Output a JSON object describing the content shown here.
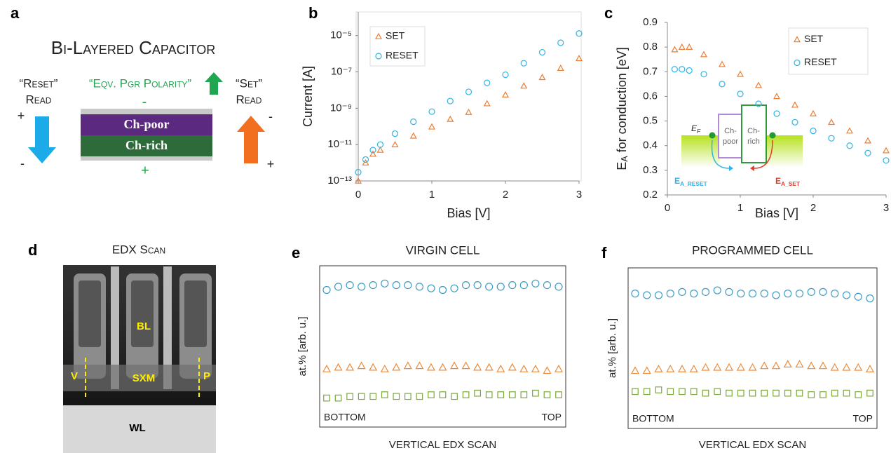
{
  "panel_labels": [
    "a",
    "b",
    "c",
    "d",
    "e",
    "f"
  ],
  "panel_a": {
    "title": "Bi-Layered Capacitor",
    "reset": "“Reset”",
    "reset_read": "Read",
    "polarity": "“Eqv. Pgr Polarity”",
    "set": "“Set”",
    "set_read": "Read",
    "top_sign": "-",
    "bottom_sign": "+",
    "left_top": "+",
    "left_bottom": "-",
    "right_top": "-",
    "right_bottom": "+",
    "layer_top": "Ch-poor",
    "layer_bottom": "Ch-rich"
  },
  "panel_d": {
    "title": "EDX Scan",
    "bl": "BL",
    "sxm": "SXM",
    "v": "V",
    "p": "P",
    "wl": "WL"
  },
  "chart_data": [
    {
      "type": "scatter",
      "xlabel": "Bias [V]",
      "ylabel": "Current [A]",
      "log_y": true,
      "legend": "upper left",
      "xlim": [
        0,
        3
      ],
      "xticks": [
        0,
        1,
        2,
        3
      ],
      "ylim": [
        1e-13,
        0.0002
      ],
      "yticks": [
        {
          "value": 1e-13,
          "label": "10⁻¹³"
        },
        {
          "value": 1e-11,
          "label": "10⁻¹¹"
        },
        {
          "value": 1e-09,
          "label": "10⁻⁹"
        },
        {
          "value": 1e-07,
          "label": "10⁻⁷"
        },
        {
          "value": 1e-05,
          "label": "10⁻⁵"
        }
      ],
      "series": [
        {
          "name": "SET",
          "color": "#ed7d31",
          "marker": "triangle",
          "x": [
            0,
            0.1,
            0.2,
            0.3,
            0.5,
            0.75,
            1,
            1.25,
            1.5,
            1.75,
            2,
            2.25,
            2.5,
            2.75,
            3
          ],
          "values": [
            1e-13,
            1e-12,
            3e-12,
            5e-12,
            1e-11,
            3e-11,
            9.5e-11,
            2.5e-10,
            6e-10,
            1.8e-09,
            5.5e-09,
            1.7e-08,
            5e-08,
            1.6e-07,
            5.5e-07
          ]
        },
        {
          "name": "RESET",
          "color": "#2eb4e6",
          "marker": "circle",
          "x": [
            0,
            0.1,
            0.2,
            0.3,
            0.5,
            0.75,
            1,
            1.25,
            1.5,
            1.75,
            2,
            2.25,
            2.5,
            2.75,
            3
          ],
          "values": [
            3e-13,
            1.5e-12,
            5e-12,
            1e-11,
            4e-11,
            1.8e-10,
            6.5e-10,
            2.5e-09,
            8e-09,
            2.5e-08,
            7e-08,
            3e-07,
            1.2e-06,
            4e-06,
            1.3e-05
          ]
        }
      ]
    },
    {
      "type": "scatter",
      "xlabel": "Bias [V]",
      "ylabel": {
        "main": "E",
        "sub": "A",
        "rest": " for conduction [eV]"
      },
      "legend": "upper right",
      "xlim": [
        0,
        3
      ],
      "xticks": [
        0,
        1,
        2,
        3
      ],
      "ylim": [
        0.2,
        0.9
      ],
      "yticks": [
        0.2,
        0.3,
        0.4,
        0.5,
        0.6,
        0.7,
        0.8,
        0.9
      ],
      "inset": {
        "ef": {
          "main": "E",
          "sub": "F"
        },
        "poor": [
          "Ch-",
          "poor"
        ],
        "rich": [
          "Ch-",
          "rich"
        ],
        "ea_reset": {
          "main": "E",
          "sub": "A_RESET"
        },
        "ea_set": {
          "main": "E",
          "sub": "A_SET"
        }
      },
      "series": [
        {
          "name": "SET",
          "color": "#ed7d31",
          "marker": "triangle",
          "x": [
            0.1,
            0.2,
            0.3,
            0.5,
            0.75,
            1,
            1.25,
            1.5,
            1.75,
            2,
            2.25,
            2.5,
            2.75,
            3
          ],
          "values": [
            0.79,
            0.8,
            0.8,
            0.77,
            0.73,
            0.69,
            0.645,
            0.6,
            0.565,
            0.53,
            0.495,
            0.46,
            0.42,
            0.38
          ]
        },
        {
          "name": "RESET",
          "color": "#2eb4e6",
          "marker": "circle",
          "x": [
            0.1,
            0.2,
            0.3,
            0.5,
            0.75,
            1,
            1.25,
            1.5,
            1.75,
            2,
            2.25,
            2.5,
            2.75,
            3
          ],
          "values": [
            0.71,
            0.71,
            0.705,
            0.69,
            0.65,
            0.61,
            0.57,
            0.53,
            0.495,
            0.46,
            0.43,
            0.4,
            0.37,
            0.34
          ]
        }
      ]
    },
    {
      "type": "scatter",
      "title": "VIRGIN CELL",
      "xlabel": "VERTICAL EDX SCAN",
      "ylabel": "at.% [arb. u.]",
      "x_start_label": "BOTTOM",
      "x_end_label": "TOP",
      "ylim": [
        0,
        100
      ],
      "series": [
        {
          "color": "#3d9cc6",
          "marker": "circle",
          "values": [
            85,
            87,
            88,
            87,
            88,
            89,
            88,
            88,
            87,
            86,
            85,
            86,
            88,
            88,
            87,
            87,
            88,
            88,
            89,
            88,
            87
          ]
        },
        {
          "color": "#ed8b3a",
          "marker": "triangle",
          "values": [
            36,
            37,
            37,
            38,
            37,
            36,
            37,
            38,
            38,
            37,
            37,
            38,
            38,
            37,
            37,
            36,
            37,
            36,
            36,
            35,
            36
          ]
        },
        {
          "color": "#7aa83a",
          "marker": "square",
          "values": [
            18,
            18,
            19,
            19,
            19,
            20,
            19,
            19,
            19,
            20,
            20,
            19,
            20,
            21,
            20,
            20,
            20,
            20,
            21,
            20,
            20
          ]
        }
      ]
    },
    {
      "type": "scatter",
      "title": "PROGRAMMED CELL",
      "xlabel": "VERTICAL EDX SCAN",
      "ylabel": "at.% [arb. u.]",
      "x_start_label": "BOTTOM",
      "x_end_label": "TOP",
      "ylim": [
        0,
        100
      ],
      "series": [
        {
          "color": "#3d9cc6",
          "marker": "circle",
          "values": [
            84,
            83,
            83,
            84,
            85,
            84,
            85,
            86,
            85,
            84,
            84,
            84,
            83,
            84,
            84,
            85,
            85,
            84,
            83,
            82,
            81
          ]
        },
        {
          "color": "#ed8b3a",
          "marker": "triangle",
          "values": [
            36,
            36,
            37,
            37,
            37,
            37,
            38,
            38,
            38,
            38,
            38,
            39,
            39,
            40,
            40,
            39,
            39,
            38,
            38,
            38,
            37
          ]
        },
        {
          "color": "#7aa83a",
          "marker": "square",
          "values": [
            23,
            23,
            24,
            23,
            23,
            23,
            22,
            23,
            22,
            22,
            22,
            22,
            22,
            22,
            22,
            21,
            21,
            22,
            22,
            21,
            22
          ]
        }
      ]
    }
  ]
}
